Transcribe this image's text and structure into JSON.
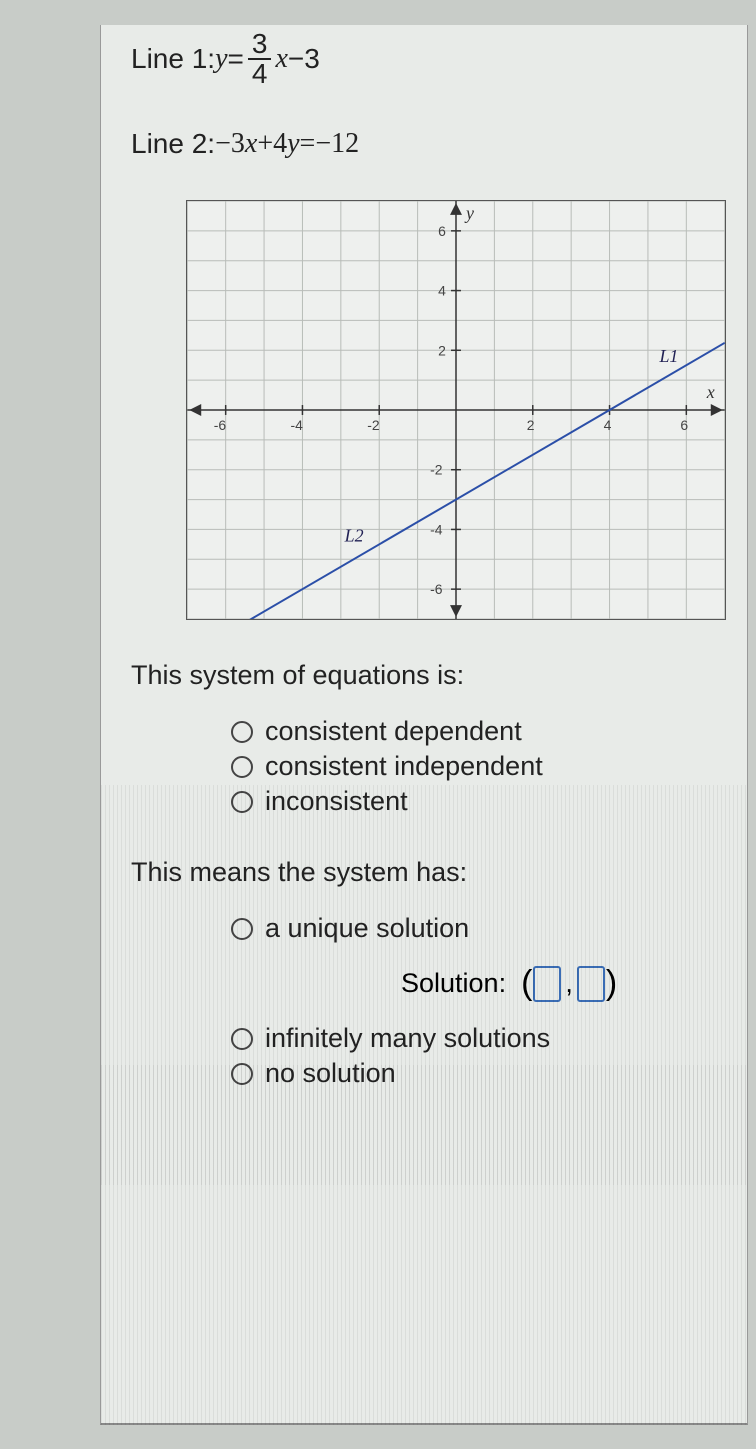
{
  "line1": {
    "prefix": "Line 1: ",
    "lhs": "y",
    "eq": "=",
    "frac_num": "3",
    "frac_den": "4",
    "after_frac": "x",
    "minus": "−",
    "const": "3"
  },
  "line2": {
    "prefix": "Line 2: ",
    "expr": "−3x+4y=−12"
  },
  "graph": {
    "type": "line",
    "xlim": [
      -7,
      7
    ],
    "ylim": [
      -7,
      7
    ],
    "xticks": [
      -6,
      -4,
      -2,
      2,
      4,
      6
    ],
    "yticks": [
      -6,
      -4,
      -2,
      2,
      4,
      6
    ],
    "xlabel": "x",
    "ylabel": "y",
    "grid_color": "#b8bcb8",
    "axis_color": "#333333",
    "line_color": "#2b4fa8",
    "line_width": 2,
    "background_color": "#eef0ee",
    "labels": {
      "L1": "L1",
      "L2": "L2"
    },
    "series": {
      "slope": 0.75,
      "intercept": -3
    }
  },
  "q1": {
    "text": "This system of equations is:",
    "options": [
      "consistent dependent",
      "consistent independent",
      "inconsistent"
    ]
  },
  "q2": {
    "text": "This means the system has:",
    "opt_unique": "a unique solution",
    "solution_label": "Solution:",
    "comma": ",",
    "opt_inf": "infinitely many solutions",
    "opt_none": "no solution"
  }
}
